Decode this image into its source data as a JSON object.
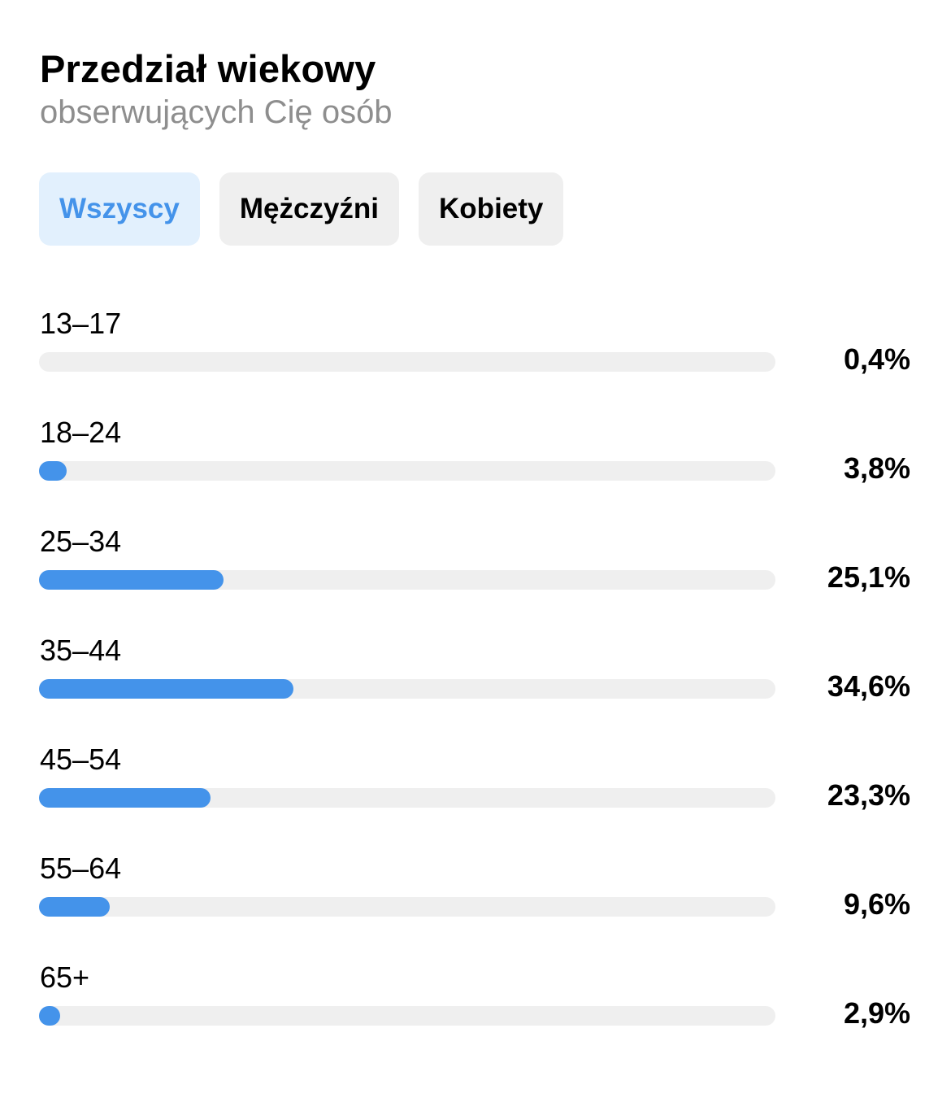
{
  "header": {
    "title": "Przedział wiekowy",
    "subtitle": "obserwujących Cię osób"
  },
  "filters": [
    {
      "label": "Wszyscy",
      "active": true
    },
    {
      "label": "Mężczyźni",
      "active": false
    },
    {
      "label": "Kobiety",
      "active": false
    }
  ],
  "colors": {
    "accent": "#4493ea",
    "track": "#efefef",
    "active_filter_bg": "#e2f0fd",
    "inactive_filter_bg": "#efefef",
    "subtitle": "#8e8e8e"
  },
  "chart_data": {
    "type": "bar",
    "orientation": "horizontal",
    "categories": [
      "13–17",
      "18–24",
      "25–34",
      "35–44",
      "45–54",
      "55–64",
      "65+"
    ],
    "values": [
      0.4,
      3.8,
      25.1,
      34.6,
      23.3,
      9.6,
      2.9
    ],
    "value_labels": [
      "0,4%",
      "3,8%",
      "25,1%",
      "34,6%",
      "23,3%",
      "9,6%",
      "2,9%"
    ],
    "unit": "%",
    "xlim": [
      0,
      100
    ],
    "grid": false
  }
}
